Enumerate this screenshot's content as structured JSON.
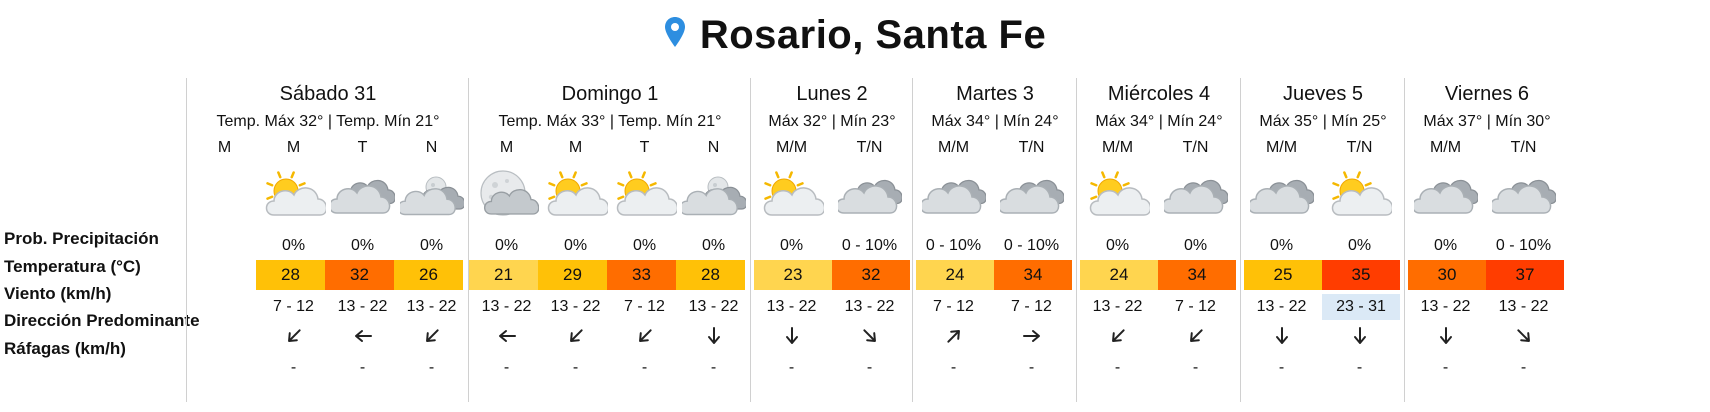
{
  "title": "Rosario, Santa Fe",
  "row_labels": {
    "precip": "Prob. Precipitación",
    "temp": "Temperatura (°C)",
    "wind": "Viento (km/h)",
    "direction": "Dirección Predominante",
    "gusts": "Ráfagas (km/h)"
  },
  "colors": {
    "temp_21": "#ffd54f",
    "temp_23": "#ffd54f",
    "temp_24": "#ffd54f",
    "temp_25": "#ffc107",
    "temp_26": "#ffc107",
    "temp_28": "#ffc107",
    "temp_29": "#ffc107",
    "temp_30": "#ff6d00",
    "temp_32": "#ff6d00",
    "temp_33": "#ff6d00",
    "temp_34": "#ff6d00",
    "temp_35": "#ff3d00",
    "temp_37": "#ff3d00",
    "wind_highlight": "#dbe9f6",
    "pin": "#2d8ee0"
  },
  "days": [
    {
      "name": "Sábado 31",
      "temps": "Temp. Máx 32° | Temp. Mín 21°",
      "slots": [
        {
          "label": "M",
          "icon": "none",
          "prob": "",
          "temp": "",
          "wind": "",
          "dir": "none",
          "gust": ""
        },
        {
          "label": "M",
          "icon": "sun-cloud-icon",
          "prob": "0%",
          "temp": "28",
          "wind": "7 - 12",
          "dir": "sw",
          "gust": "-"
        },
        {
          "label": "T",
          "icon": "cloudy-icon",
          "prob": "0%",
          "temp": "32",
          "wind": "13 - 22",
          "dir": "w",
          "gust": "-"
        },
        {
          "label": "N",
          "icon": "moon-cloud-icon",
          "prob": "0%",
          "temp": "26",
          "wind": "13 - 22",
          "dir": "sw",
          "gust": "-"
        }
      ]
    },
    {
      "name": "Domingo 1",
      "temps": "Temp. Máx 33° | Temp. Mín 21°",
      "slots": [
        {
          "label": "M",
          "icon": "full-moon-cloud-icon",
          "prob": "0%",
          "temp": "21",
          "wind": "13 - 22",
          "dir": "w",
          "gust": "-"
        },
        {
          "label": "M",
          "icon": "sun-cloud-icon",
          "prob": "0%",
          "temp": "29",
          "wind": "13 - 22",
          "dir": "sw",
          "gust": "-"
        },
        {
          "label": "T",
          "icon": "sun-cloud-icon",
          "prob": "0%",
          "temp": "33",
          "wind": "7 - 12",
          "dir": "sw",
          "gust": "-"
        },
        {
          "label": "N",
          "icon": "moon-cloud-icon",
          "prob": "0%",
          "temp": "28",
          "wind": "13 - 22",
          "dir": "s",
          "gust": "-"
        }
      ]
    },
    {
      "name": "Lunes 2",
      "temps": "Máx 32° | Mín 23°",
      "slots": [
        {
          "label": "M/M",
          "icon": "sun-cloud-icon",
          "prob": "0%",
          "temp": "23",
          "wind": "13 - 22",
          "dir": "s",
          "gust": "-"
        },
        {
          "label": "T/N",
          "icon": "cloudy-icon",
          "prob": "0 - 10%",
          "temp": "32",
          "wind": "13 - 22",
          "dir": "se",
          "gust": "-"
        }
      ]
    },
    {
      "name": "Martes 3",
      "temps": "Máx 34° | Mín 24°",
      "slots": [
        {
          "label": "M/M",
          "icon": "cloudy-icon",
          "prob": "0 - 10%",
          "temp": "24",
          "wind": "7 - 12",
          "dir": "ne",
          "gust": "-"
        },
        {
          "label": "T/N",
          "icon": "cloudy-icon",
          "prob": "0 - 10%",
          "temp": "34",
          "wind": "7 - 12",
          "dir": "e",
          "gust": "-"
        }
      ]
    },
    {
      "name": "Miércoles 4",
      "temps": "Máx 34° | Mín 24°",
      "slots": [
        {
          "label": "M/M",
          "icon": "sun-cloud-icon",
          "prob": "0%",
          "temp": "24",
          "wind": "13 - 22",
          "dir": "sw",
          "gust": "-"
        },
        {
          "label": "T/N",
          "icon": "cloudy-icon",
          "prob": "0%",
          "temp": "34",
          "wind": "7 - 12",
          "dir": "sw",
          "gust": "-"
        }
      ]
    },
    {
      "name": "Jueves 5",
      "temps": "Máx 35° | Mín 25°",
      "slots": [
        {
          "label": "M/M",
          "icon": "cloudy-icon",
          "prob": "0%",
          "temp": "25",
          "wind": "13 - 22",
          "dir": "s",
          "gust": "-"
        },
        {
          "label": "T/N",
          "icon": "sun-cloud-icon",
          "prob": "0%",
          "temp": "35",
          "wind": "23 - 31",
          "wind_highlight": true,
          "dir": "s",
          "gust": "-"
        }
      ]
    },
    {
      "name": "Viernes 6",
      "temps": "Máx 37° | Mín 30°",
      "slots": [
        {
          "label": "M/M",
          "icon": "cloudy-icon",
          "prob": "0%",
          "temp": "30",
          "wind": "13 - 22",
          "dir": "s",
          "gust": "-"
        },
        {
          "label": "T/N",
          "icon": "cloudy-icon",
          "prob": "0 - 10%",
          "temp": "37",
          "wind": "13 - 22",
          "dir": "se",
          "gust": "-"
        }
      ]
    }
  ]
}
